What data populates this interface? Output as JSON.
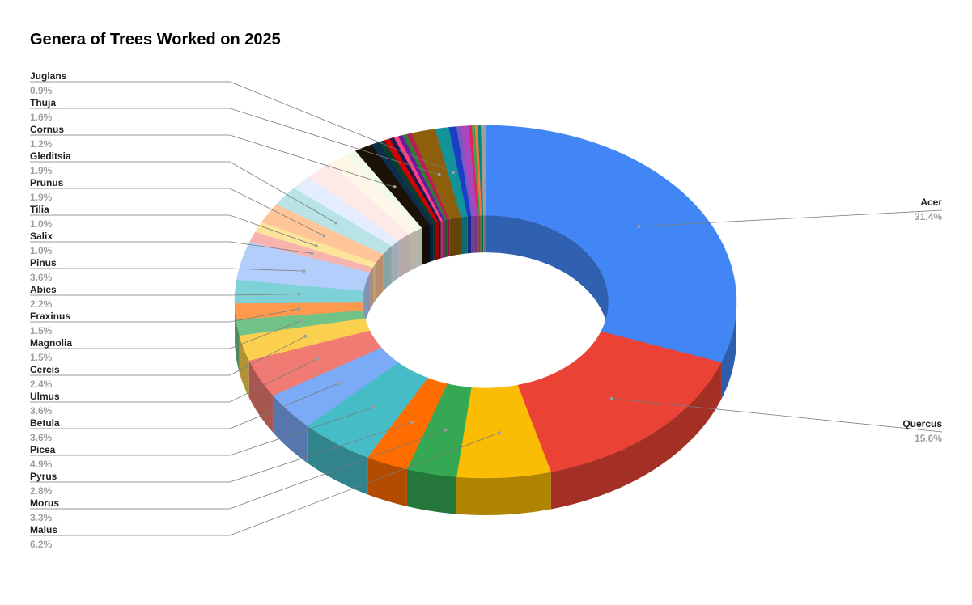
{
  "chart_data": {
    "type": "pie",
    "variant": "3d-donut",
    "title": "Genera of Trees Worked on 2025",
    "legend": "labeled slices",
    "slices": [
      {
        "label": "Acer",
        "value": 31.4,
        "pct_label": "31.4%",
        "color": "#4285f4"
      },
      {
        "label": "Quercus",
        "value": 15.6,
        "pct_label": "15.6%",
        "color": "#ea4335"
      },
      {
        "label": "Malus",
        "value": 6.2,
        "pct_label": "6.2%",
        "color": "#fbbc04"
      },
      {
        "label": "Morus",
        "value": 3.3,
        "pct_label": "3.3%",
        "color": "#34a853"
      },
      {
        "label": "Pyrus",
        "value": 2.8,
        "pct_label": "2.8%",
        "color": "#ff6d01"
      },
      {
        "label": "Picea",
        "value": 4.9,
        "pct_label": "4.9%",
        "color": "#46bdc6"
      },
      {
        "label": "Betula",
        "value": 3.6,
        "pct_label": "3.6%",
        "color": "#7baaf7"
      },
      {
        "label": "Ulmus",
        "value": 3.6,
        "pct_label": "3.6%",
        "color": "#f07b72"
      },
      {
        "label": "Cercis",
        "value": 2.4,
        "pct_label": "2.4%",
        "color": "#fcd04f"
      },
      {
        "label": "Magnolia",
        "value": 1.5,
        "pct_label": "1.5%",
        "color": "#71c287"
      },
      {
        "label": "Fraxinus",
        "value": 1.5,
        "pct_label": "1.5%",
        "color": "#ff994d"
      },
      {
        "label": "Abies",
        "value": 2.2,
        "pct_label": "2.2%",
        "color": "#7ed1d7"
      },
      {
        "label": "Pinus",
        "value": 3.6,
        "pct_label": "3.6%",
        "color": "#b3cefb"
      },
      {
        "label": "Salix",
        "value": 1.0,
        "pct_label": "1.0%",
        "color": "#f7b4ae"
      },
      {
        "label": "Tilia",
        "value": 1.0,
        "pct_label": "1.0%",
        "color": "#fde49b"
      },
      {
        "label": "Prunus",
        "value": 1.9,
        "pct_label": "1.9%",
        "color": "#ffc599"
      },
      {
        "label": "Gleditsia",
        "value": 1.9,
        "pct_label": "1.9%",
        "color": "#b9e4e7"
      },
      {
        "label": "",
        "value": 1.4,
        "color": "#e3edfd"
      },
      {
        "label": "",
        "value": 1.9,
        "color": "#fce9e8"
      },
      {
        "label": "",
        "value": 1.3,
        "color": "#fef6e6"
      },
      {
        "label": "",
        "value": 0.7,
        "color": "#f1fae8"
      },
      {
        "label": "Cornus",
        "value": 1.2,
        "pct_label": "1.2%",
        "color": "#1a1207"
      },
      {
        "label": "",
        "value": 0.5,
        "color": "#0b2e4f"
      },
      {
        "label": "",
        "value": 0.4,
        "color": "#0a3d2a"
      },
      {
        "label": "",
        "value": 0.4,
        "color": "#d50000"
      },
      {
        "label": "",
        "value": 0.3,
        "color": "#1b1b4d"
      },
      {
        "label": "",
        "value": 0.3,
        "color": "#ff4081"
      },
      {
        "label": "",
        "value": 0.3,
        "color": "#6a1b9a"
      },
      {
        "label": "",
        "value": 0.3,
        "color": "#2e7d32"
      },
      {
        "label": "",
        "value": 0.3,
        "color": "#c2185b"
      },
      {
        "label": "Thuja",
        "value": 1.6,
        "pct_label": "1.6%",
        "color": "#8d5e0b"
      },
      {
        "label": "Juglans",
        "value": 0.9,
        "pct_label": "0.9%",
        "color": "#12939a"
      },
      {
        "label": "",
        "value": 0.5,
        "color": "#1a3fc7"
      },
      {
        "label": "",
        "value": 0.3,
        "color": "#7e57c2"
      },
      {
        "label": "",
        "value": 0.5,
        "color": "#ab47bc"
      },
      {
        "label": "",
        "value": 0.2,
        "color": "#e91e63"
      },
      {
        "label": "",
        "value": 0.2,
        "color": "#43a047"
      },
      {
        "label": "",
        "value": 0.2,
        "color": "#ff7043"
      },
      {
        "label": "",
        "value": 0.2,
        "color": "#00897b"
      },
      {
        "label": "",
        "value": 0.3,
        "color": "#9e9e9e"
      }
    ]
  }
}
